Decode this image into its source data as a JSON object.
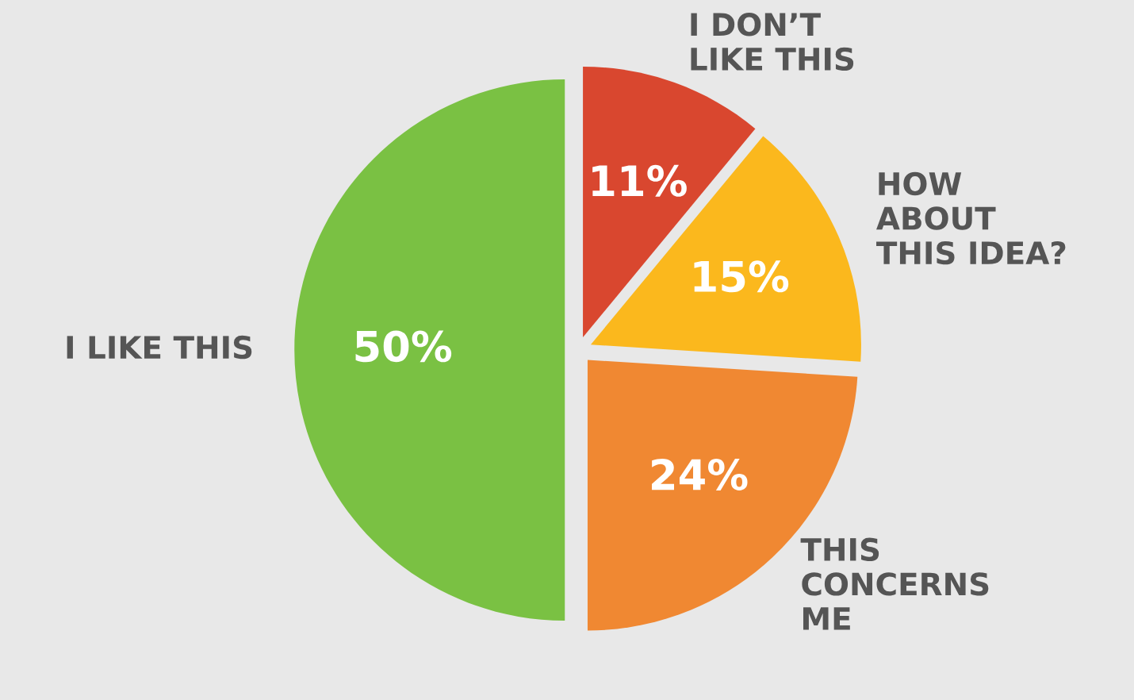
{
  "chart_data": {
    "type": "pie",
    "categories": [
      "I DON’T\nLIKE THIS",
      "HOW\nABOUT\nTHIS IDEA?",
      "THIS\nCONCERNS\nME",
      "I LIKE THIS"
    ],
    "values": [
      11,
      15,
      24,
      50
    ],
    "colors": [
      "#d9472f",
      "#fbb81d",
      "#f08832",
      "#7ac143"
    ],
    "value_labels": [
      "11%",
      "15%",
      "24%",
      "50%"
    ]
  }
}
